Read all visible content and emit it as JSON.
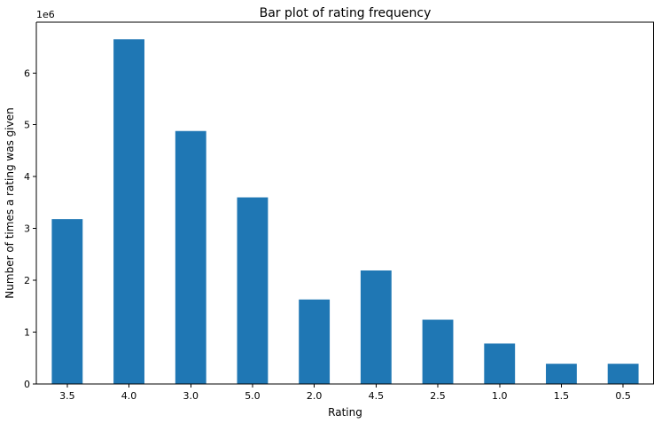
{
  "chart_data": {
    "type": "bar",
    "title": "Bar plot of rating frequency",
    "xlabel": "Rating",
    "ylabel": "Number of times a rating was given",
    "y_offset_label": "1e6",
    "categories": [
      "3.5",
      "4.0",
      "3.0",
      "5.0",
      "2.0",
      "4.5",
      "2.5",
      "1.0",
      "1.5",
      "0.5"
    ],
    "values": [
      3180000,
      6650000,
      4880000,
      3600000,
      1630000,
      2190000,
      1240000,
      780000,
      390000,
      390000
    ],
    "yticks": [
      0,
      1000000,
      2000000,
      3000000,
      4000000,
      5000000,
      6000000
    ],
    "ytick_labels": [
      "0",
      "1",
      "2",
      "3",
      "4",
      "5",
      "6"
    ],
    "ylim": [
      0,
      6980000
    ],
    "bar_color": "#1f77b4",
    "grid": false,
    "legend": false
  }
}
